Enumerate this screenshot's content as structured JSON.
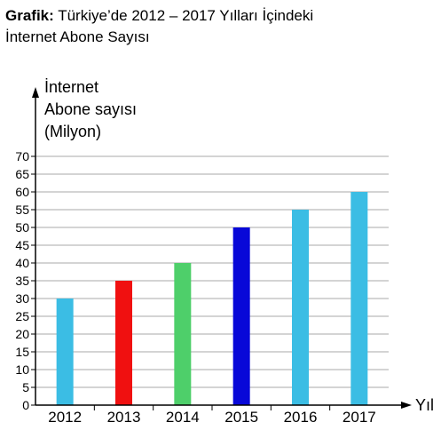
{
  "title": {
    "prefix": "Grafik:",
    "line1": " Türkiye’de 2012 – 2017 Yılları İçindeki",
    "line2": "İnternet Abone Sayısı"
  },
  "chart_data": {
    "type": "bar",
    "categories": [
      "2012",
      "2013",
      "2014",
      "2015",
      "2016",
      "2017"
    ],
    "values": [
      30,
      35,
      40,
      50,
      55,
      60
    ],
    "colors": [
      "#3bbde4",
      "#f01010",
      "#4ecf6a",
      "#0808d8",
      "#3bbde4",
      "#3bbde4"
    ],
    "ylabel_lines": [
      "İnternet",
      "Abone sayısı",
      "(Milyon)"
    ],
    "xlabel": "Yıl",
    "ylim": [
      0,
      70
    ],
    "yticks": [
      0,
      5,
      10,
      15,
      20,
      25,
      30,
      35,
      40,
      45,
      50,
      55,
      60,
      65,
      70
    ],
    "grid": true
  }
}
